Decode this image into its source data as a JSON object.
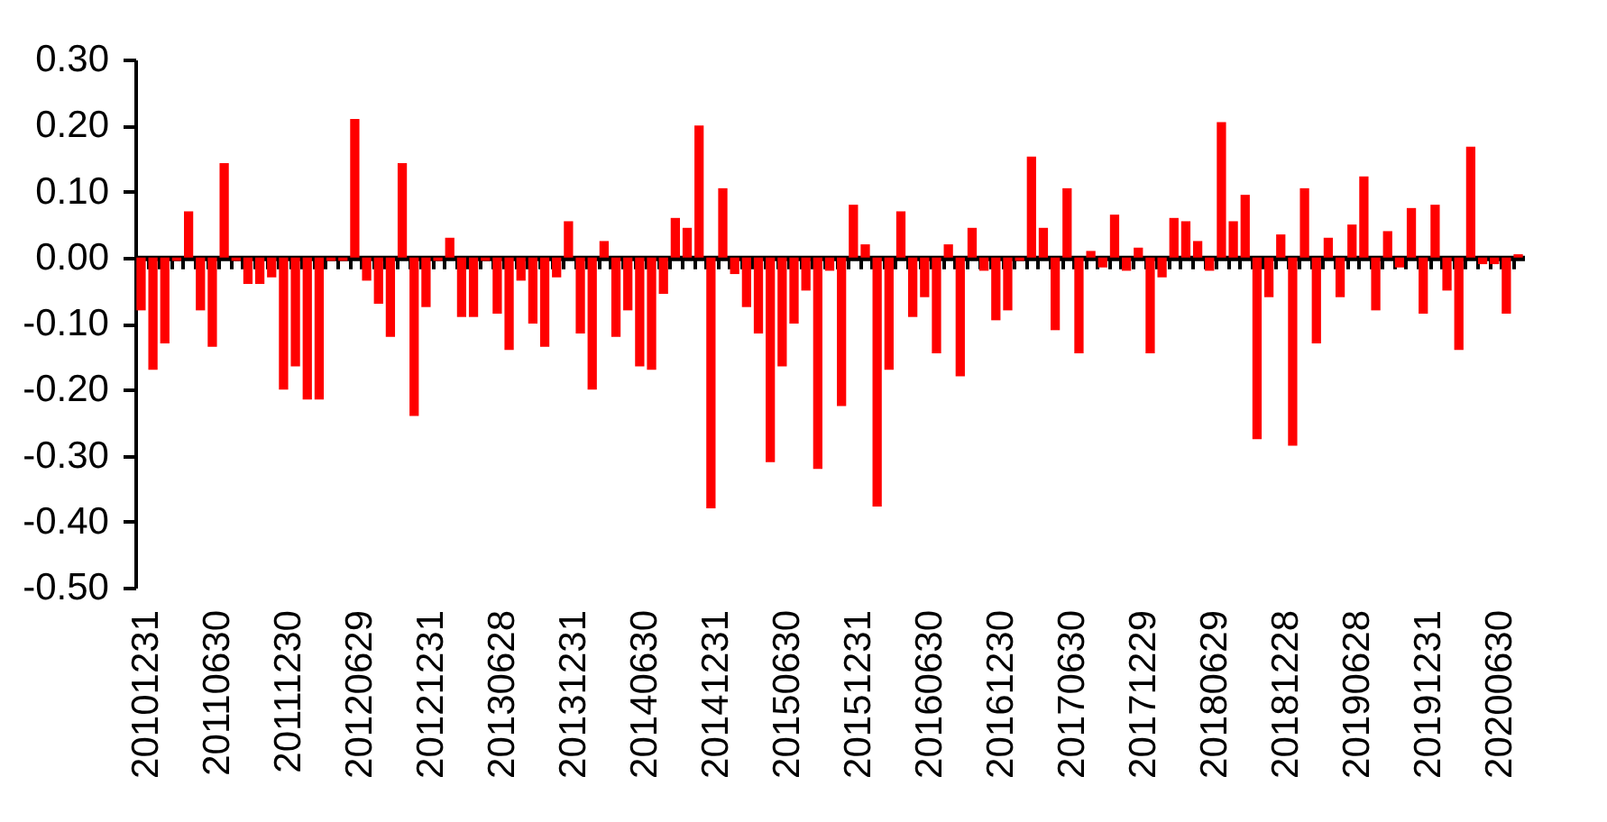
{
  "chart_data": {
    "type": "bar",
    "categories": [
      "20101231",
      null,
      null,
      null,
      null,
      null,
      "20110630",
      null,
      null,
      null,
      null,
      null,
      "20111230",
      null,
      null,
      null,
      null,
      null,
      "20120629",
      null,
      null,
      null,
      null,
      null,
      "20121231",
      null,
      null,
      null,
      null,
      null,
      "20130628",
      null,
      null,
      null,
      null,
      null,
      "20131231",
      null,
      null,
      null,
      null,
      null,
      "20140630",
      null,
      null,
      null,
      null,
      null,
      "20141231",
      null,
      null,
      null,
      null,
      null,
      "20150630",
      null,
      null,
      null,
      null,
      null,
      "20151231",
      null,
      null,
      null,
      null,
      null,
      "20160630",
      null,
      null,
      null,
      null,
      null,
      "20161230",
      null,
      null,
      null,
      null,
      null,
      "20170630",
      null,
      null,
      null,
      null,
      null,
      "20171229",
      null,
      null,
      null,
      null,
      null,
      "20180629",
      null,
      null,
      null,
      null,
      null,
      "20181228",
      null,
      null,
      null,
      null,
      null,
      "20190628",
      null,
      null,
      null,
      null,
      null,
      "20191231",
      null,
      null,
      null,
      null,
      null,
      "20200630",
      null,
      null
    ],
    "values": [
      -0.08,
      -0.17,
      -0.13,
      -0.005,
      0.07,
      -0.08,
      -0.135,
      0.143,
      -0.005,
      -0.04,
      -0.04,
      -0.03,
      -0.2,
      -0.165,
      -0.215,
      -0.215,
      -0.005,
      -0.005,
      0.21,
      -0.035,
      -0.07,
      -0.12,
      0.143,
      -0.24,
      -0.075,
      -0.005,
      0.03,
      -0.09,
      -0.09,
      -0.005,
      -0.085,
      -0.14,
      -0.035,
      -0.1,
      -0.135,
      -0.03,
      0.055,
      -0.115,
      -0.2,
      0.025,
      -0.12,
      -0.08,
      -0.165,
      -0.17,
      -0.055,
      0.06,
      0.045,
      0.2,
      -0.38,
      0.105,
      -0.025,
      -0.075,
      -0.115,
      -0.31,
      -0.165,
      -0.1,
      -0.05,
      -0.32,
      -0.02,
      -0.225,
      0.08,
      0.02,
      -0.377,
      -0.17,
      0.07,
      -0.09,
      -0.06,
      -0.145,
      0.02,
      -0.18,
      0.045,
      -0.02,
      -0.095,
      -0.08,
      -0.005,
      0.153,
      0.045,
      -0.11,
      0.105,
      -0.145,
      0.01,
      -0.015,
      0.065,
      -0.02,
      0.015,
      -0.145,
      -0.03,
      0.06,
      0.055,
      0.025,
      -0.02,
      0.205,
      0.055,
      0.095,
      -0.275,
      -0.06,
      0.035,
      -0.285,
      0.105,
      -0.13,
      0.03,
      -0.06,
      0.05,
      0.123,
      -0.08,
      0.04,
      -0.015,
      0.075,
      -0.085,
      0.08,
      -0.05,
      -0.14,
      0.168,
      -0.01,
      -0.01,
      -0.085,
      0.005
    ],
    "color": "#ff0000",
    "ylim": [
      -0.5,
      0.3
    ],
    "yticks": [
      {
        "value": -0.5,
        "label": "-0.50"
      },
      {
        "value": -0.4,
        "label": "-0.40"
      },
      {
        "value": -0.3,
        "label": "-0.30"
      },
      {
        "value": -0.2,
        "label": "-0.20"
      },
      {
        "value": -0.1,
        "label": "-0.10"
      },
      {
        "value": 0,
        "label": "0.00"
      },
      {
        "value": 0.1,
        "label": "0.10"
      },
      {
        "value": 0.2,
        "label": "0.20"
      },
      {
        "value": 0.3,
        "label": "0.30"
      }
    ]
  }
}
